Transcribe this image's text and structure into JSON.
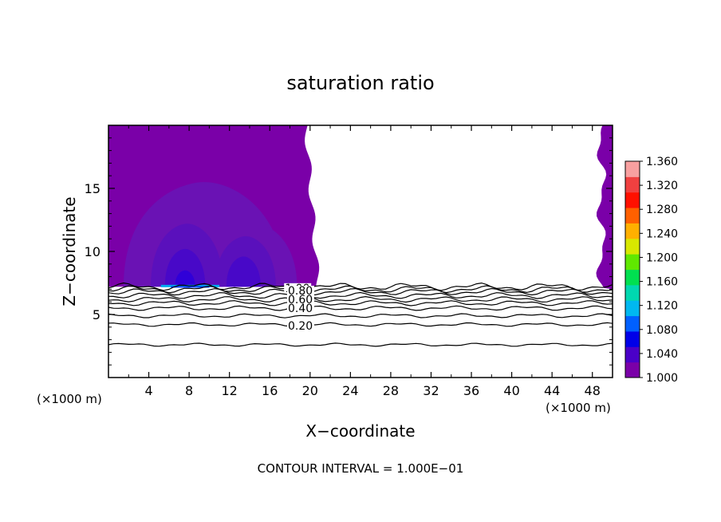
{
  "chart_data": {
    "type": "heatmap",
    "title": "saturation ratio",
    "xlabel": "X−coordinate",
    "ylabel": "Z−coordinate",
    "x_unit_left": "(×1000 m)",
    "x_unit_right": "(×1000 m)",
    "xlim": [
      0,
      50
    ],
    "ylim": [
      0,
      20
    ],
    "x_ticks": [
      4,
      8,
      12,
      16,
      20,
      24,
      28,
      32,
      36,
      40,
      44,
      48
    ],
    "x_tick_labels": [
      "4",
      "8",
      "12",
      "16",
      "20",
      "24",
      "28",
      "32",
      "36",
      "40",
      "44",
      "48"
    ],
    "y_ticks": [
      5,
      10,
      15
    ],
    "y_tick_labels": [
      "5",
      "10",
      "15"
    ],
    "footer": "CONTOUR INTERVAL = 1.000E−01",
    "colorbar": {
      "min": 1.0,
      "max": 1.36,
      "tick_labels": [
        "1.360",
        "1.320",
        "1.280",
        "1.240",
        "1.200",
        "1.160",
        "1.120",
        "1.080",
        "1.040",
        "1.000"
      ],
      "colors": [
        "#7a00a8",
        "#4a00c8",
        "#0000e8",
        "#0060ff",
        "#00b8f0",
        "#00d8b0",
        "#00e050",
        "#60e800",
        "#d8e800",
        "#ffb000",
        "#ff6000",
        "#ff1000",
        "#f04040",
        "#f8a0a0"
      ]
    },
    "contour_levels": [
      0.1,
      0.2,
      0.3,
      0.4,
      0.5,
      0.6,
      0.7,
      0.8,
      0.9,
      1.0
    ],
    "contour_labels": [
      {
        "text": "1.00",
        "x": 17.5,
        "z": 7.1
      },
      {
        "text": "0.80",
        "x": 17.8,
        "z": 6.9
      },
      {
        "text": "0.60",
        "x": 17.8,
        "z": 6.2
      },
      {
        "text": "0.40",
        "x": 17.8,
        "z": 5.5
      },
      {
        "text": "0.20",
        "x": 17.8,
        "z": 4.1
      }
    ],
    "contour_lines_z": [
      {
        "level": 0.1,
        "z": 2.6
      },
      {
        "level": 0.2,
        "z": 4.2
      },
      {
        "level": 0.3,
        "z": 4.9
      },
      {
        "level": 0.4,
        "z": 5.5
      },
      {
        "level": 0.5,
        "z": 5.9
      },
      {
        "level": 0.6,
        "z": 6.2
      },
      {
        "level": 0.7,
        "z": 6.5
      },
      {
        "level": 0.8,
        "z": 6.8
      },
      {
        "level": 0.9,
        "z": 7.0
      },
      {
        "level": 1.0,
        "z": 7.2
      }
    ],
    "supersaturated_region": {
      "x": [
        0,
        20.8
      ],
      "z": [
        7.2,
        20
      ],
      "right_strip_x": [
        48.8,
        50
      ],
      "base_value": 1.0
    }
  }
}
